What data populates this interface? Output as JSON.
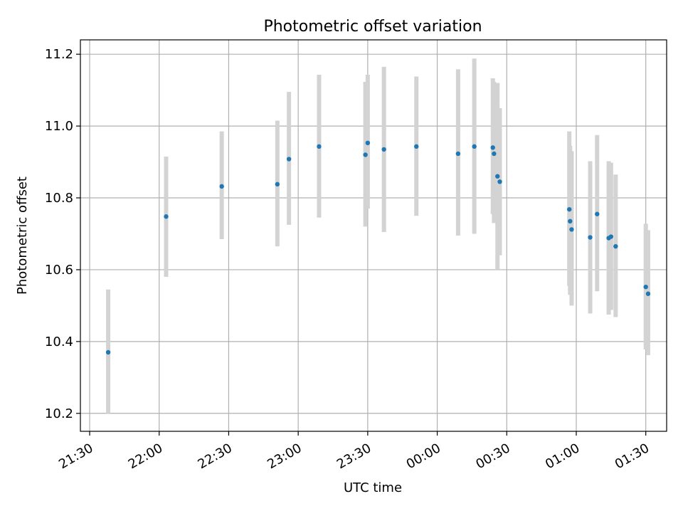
{
  "chart_data": {
    "type": "scatter",
    "title": "Photometric offset variation",
    "xlabel": "UTC time",
    "ylabel": "Photometric offset",
    "xlim": [
      -4.0,
      249.0
    ],
    "ylim": [
      10.15,
      11.24
    ],
    "grid": true,
    "x_tick_minutes": [
      0,
      30,
      60,
      90,
      120,
      150,
      180,
      210,
      240
    ],
    "x_tick_labels": [
      "21:30",
      "22:00",
      "22:30",
      "23:00",
      "23:30",
      "00:00",
      "00:30",
      "01:00",
      "01:30"
    ],
    "y_ticks": [
      10.2,
      10.4,
      10.6,
      10.8,
      11.0,
      11.2
    ],
    "y_tick_labels": [
      "10.2",
      "10.4",
      "10.6",
      "10.8",
      "11.0",
      "11.2"
    ],
    "colors": {
      "point": "#1f77b4",
      "errorbar": "#d3d3d3",
      "grid": "#b0b0b0"
    },
    "points": [
      {
        "time": "21:38",
        "y": 10.37,
        "ylow": 10.2,
        "yhigh": 10.545
      },
      {
        "time": "22:03",
        "y": 10.748,
        "ylow": 10.58,
        "yhigh": 10.915
      },
      {
        "time": "22:27",
        "y": 10.832,
        "ylow": 10.685,
        "yhigh": 10.985
      },
      {
        "time": "22:51",
        "y": 10.838,
        "ylow": 10.665,
        "yhigh": 11.015
      },
      {
        "time": "22:56",
        "y": 10.908,
        "ylow": 10.725,
        "yhigh": 11.095
      },
      {
        "time": "23:09",
        "y": 10.943,
        "ylow": 10.745,
        "yhigh": 11.143
      },
      {
        "time": "23:29",
        "y": 10.92,
        "ylow": 10.72,
        "yhigh": 11.123
      },
      {
        "time": "23:30",
        "y": 10.953,
        "ylow": 10.77,
        "yhigh": 11.143
      },
      {
        "time": "23:37",
        "y": 10.935,
        "ylow": 10.705,
        "yhigh": 11.165
      },
      {
        "time": "23:51",
        "y": 10.943,
        "ylow": 10.75,
        "yhigh": 11.138
      },
      {
        "time": "00:09",
        "y": 10.923,
        "ylow": 10.695,
        "yhigh": 11.158
      },
      {
        "time": "00:16",
        "y": 10.943,
        "ylow": 10.7,
        "yhigh": 11.188
      },
      {
        "time": "00:24",
        "y": 10.94,
        "ylow": 10.755,
        "yhigh": 11.133
      },
      {
        "time": "00:24:30",
        "y": 10.923,
        "ylow": 10.73,
        "yhigh": 11.123
      },
      {
        "time": "00:26",
        "y": 10.86,
        "ylow": 10.6,
        "yhigh": 11.12
      },
      {
        "time": "00:27",
        "y": 10.845,
        "ylow": 10.64,
        "yhigh": 11.05
      },
      {
        "time": "00:57",
        "y": 10.768,
        "ylow": 10.555,
        "yhigh": 10.985
      },
      {
        "time": "00:57:20",
        "y": 10.735,
        "ylow": 10.53,
        "yhigh": 10.945
      },
      {
        "time": "00:58",
        "y": 10.712,
        "ylow": 10.5,
        "yhigh": 10.93
      },
      {
        "time": "01:06",
        "y": 10.69,
        "ylow": 10.478,
        "yhigh": 10.902
      },
      {
        "time": "01:09",
        "y": 10.755,
        "ylow": 10.54,
        "yhigh": 10.975
      },
      {
        "time": "01:14",
        "y": 10.688,
        "ylow": 10.475,
        "yhigh": 10.902
      },
      {
        "time": "01:15",
        "y": 10.692,
        "ylow": 10.488,
        "yhigh": 10.898
      },
      {
        "time": "01:17",
        "y": 10.665,
        "ylow": 10.468,
        "yhigh": 10.865
      },
      {
        "time": "01:30",
        "y": 10.552,
        "ylow": 10.378,
        "yhigh": 10.728
      },
      {
        "time": "01:31",
        "y": 10.533,
        "ylow": 10.362,
        "yhigh": 10.71
      }
    ]
  }
}
